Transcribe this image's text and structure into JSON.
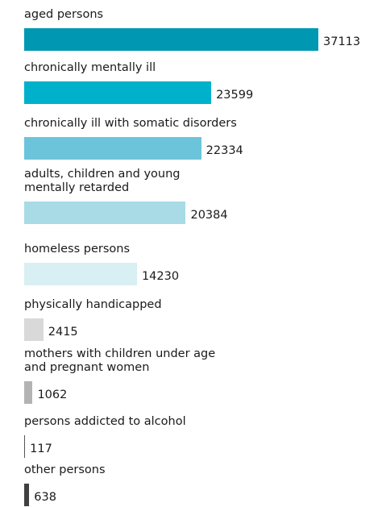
{
  "chart_data": {
    "type": "bar",
    "orientation": "horizontal",
    "categories": [
      "aged persons",
      "chronically mentally ill",
      "chronically ill with somatic disorders",
      "adults, children and young\nmentally retarded",
      "homeless persons",
      "physically handicapped",
      "mothers with children under age\nand pregnant women",
      "persons addicted to alcohol",
      "other persons"
    ],
    "values": [
      37113,
      23599,
      22334,
      20384,
      14230,
      2415,
      1062,
      117,
      638
    ],
    "colors": [
      "#0097b2",
      "#00b1cc",
      "#6cc4da",
      "#a8dbe6",
      "#d8eff4",
      "#d9d9d9",
      "#b3b3b3",
      "#555555",
      "#404040"
    ]
  }
}
